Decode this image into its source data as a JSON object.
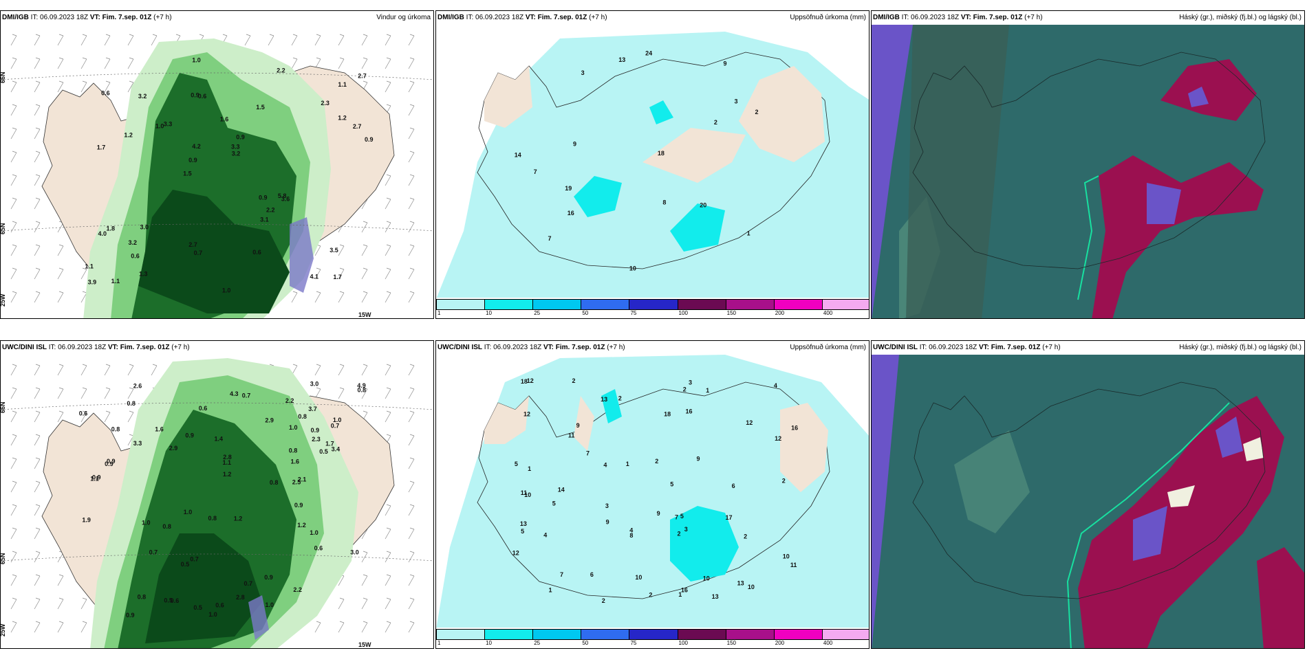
{
  "top_row": {
    "wind": {
      "model": "DMI/IGB",
      "it": "IT: 06.09.2023 18Z",
      "vt": "VT: Fim. 7.sep. 01Z",
      "lead": "(+7 h)",
      "product": "Vindur og úrkoma",
      "lat_labels": [
        "66N",
        "65N"
      ],
      "lon_labels": [
        "25W",
        "15W"
      ],
      "values": [
        "1.7",
        "1.7",
        "1.1",
        "1.5",
        "1.5",
        "1.1",
        "0.9",
        "1.6",
        "1.8",
        "3.3",
        "1.1",
        "0.6",
        "0.6",
        "0.9",
        "3.6",
        "0.6",
        "1.0",
        "0.9",
        "0.9",
        "1.2",
        "0.9",
        "2.7",
        "4.2",
        "3.2",
        "2.2",
        "3.0",
        "4.1",
        "3.5",
        "5.8",
        "1.0",
        "1.0",
        "1.2",
        "3.1",
        "1.3",
        "2.7",
        "3.3",
        "3.9",
        "0.7",
        "3.2",
        "4.0",
        "2.3",
        "2.7",
        "2.2",
        "0.6",
        "3.2"
      ]
    },
    "precip": {
      "model": "DMI/IGB",
      "it": "IT: 06.09.2023 18Z",
      "vt": "VT: Fim. 7.sep. 01Z",
      "lead": "(+7 h)",
      "product": "Uppsöfnuð úrkoma (mm)",
      "values": [
        "7",
        "9",
        "3",
        "3",
        "8",
        "9",
        "19",
        "16",
        "2",
        "2",
        "7",
        "24",
        "20",
        "18",
        "10",
        "13",
        "1",
        "14"
      ]
    },
    "cloud": {
      "model": "DMI/IGB",
      "it": "IT: 06.09.2023 18Z",
      "vt": "VT: Fim. 7.sep. 01Z",
      "lead": "(+7 h)",
      "product": "Háský (gr.), miðský (fj.bl.) og lágský (bl.)"
    }
  },
  "bottom_row": {
    "wind": {
      "model": "UWC/DINI ISL",
      "it": "IT: 06.09.2023 18Z",
      "vt": "VT: Fim. 7.sep. 01Z",
      "lead": "(+7 h)",
      "product": "",
      "lat_labels": [
        "66N",
        "65N"
      ],
      "lon_labels": [
        "25W",
        "15W"
      ],
      "values": [
        "0.5",
        "0.7",
        "0.7",
        "0.9",
        "0.6",
        "0.5",
        "0.8",
        "1.0",
        "0.7",
        "0.9",
        "0.8",
        "1.0",
        "0.7",
        "0.8",
        "0.9",
        "1.0",
        "1.0",
        "1.9",
        "2.2",
        "1.2",
        "2.3",
        "1.1",
        "0.5",
        "0.6",
        "0.7",
        "0.6",
        "0.9",
        "2.9",
        "0.6",
        "0.9",
        "1.1",
        "1.6",
        "1.0",
        "2.1",
        "2.9",
        "0.9",
        "1.0",
        "3.7",
        "2.2",
        "1.2",
        "0.9",
        "0.6",
        "2.6",
        "1.6",
        "0.5",
        "0.8",
        "3.3",
        "2.8",
        "3.4",
        "0.9",
        "1.4",
        "1.2",
        "2.5",
        "3.0",
        "4.3",
        "2.8",
        "0.8",
        "0.8",
        "1.0",
        "1.7",
        "3.0",
        "0.8",
        "4.9",
        "0.8",
        "0.8"
      ]
    },
    "precip": {
      "model": "UWC/DINI ISL",
      "it": "IT: 06.09.2023 18Z",
      "vt": "VT: Fim. 7.sep. 01Z",
      "lead": "(+7 h)",
      "product": "Uppsöfnuð úrkoma (mm)",
      "values": [
        "3",
        "1",
        "4",
        "2",
        "3",
        "1",
        "6",
        "5",
        "4",
        "2",
        "7",
        "5",
        "4",
        "4",
        "2",
        "10",
        "9",
        "5",
        "2",
        "11",
        "13",
        "7",
        "8",
        "1",
        "18",
        "3",
        "10",
        "10",
        "5",
        "11",
        "2",
        "9",
        "2",
        "12",
        "9",
        "2",
        "13",
        "12",
        "10",
        "9",
        "14",
        "18",
        "16",
        "13",
        "1",
        "7",
        "13",
        "16",
        "10",
        "12",
        "16",
        "12",
        "11",
        "12",
        "17",
        "2",
        "6",
        "5",
        "1",
        "2"
      ]
    },
    "cloud": {
      "model": "UWC/DINI ISL",
      "it": "IT: 06.09.2023 18Z",
      "vt": "VT: Fim. 7.sep. 01Z",
      "lead": "(+7 h)",
      "product": "Háský (gr.), miðský (fj.bl.) og lágský (bl.)"
    }
  },
  "colorbar": {
    "ticks": [
      "1",
      "10",
      "25",
      "50",
      "75",
      "100",
      "150",
      "200",
      "400"
    ],
    "colors": [
      "#b8f4f4",
      "#12ecec",
      "#00c8f0",
      "#2f6cf0",
      "#2626c8",
      "#6b0a52",
      "#a8108a",
      "#f000c0",
      "#f4aaf0"
    ]
  },
  "colors": {
    "land": "#f2e4d6",
    "ocean": "#ffffff",
    "green_light": "#cdeec9",
    "green_mid": "#7fcf7f",
    "green_dark": "#1c6e2a",
    "green_darkest": "#0b4a1a",
    "precip_light": "#b8f4f4",
    "precip_cyan": "#12ecec",
    "cloud_teal": "#2e6a6a",
    "cloud_magenta": "#9b1050",
    "cloud_violet": "#6a54c8"
  }
}
